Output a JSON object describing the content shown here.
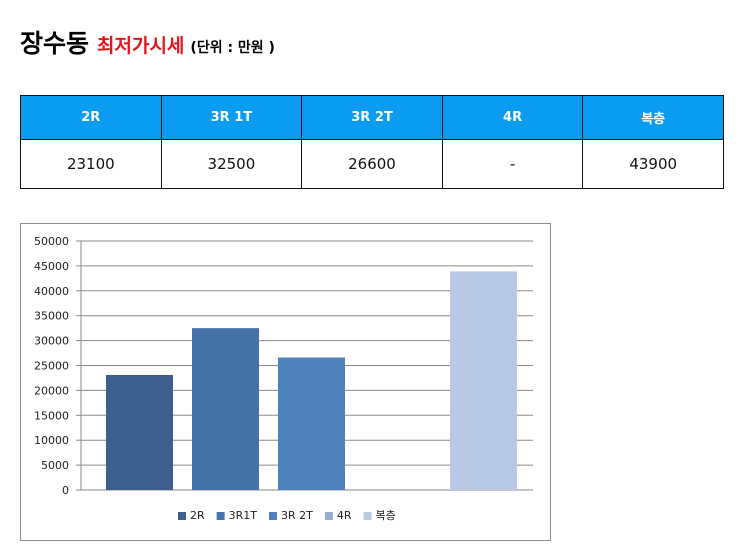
{
  "header": {
    "title": "장수동",
    "subtitle": "최저가시세",
    "unit": "(단위 : 만원 )"
  },
  "price_table": {
    "headers": [
      "2R",
      "3R 1T",
      "3R 2T",
      "4R",
      "복층"
    ],
    "values": [
      "23100",
      "32500",
      "26600",
      "-",
      "43900"
    ]
  },
  "colors": {
    "header_bg": "#0a9cf0",
    "title_accent": "#e8141b",
    "series": [
      "#3c5f8e",
      "#4672aa",
      "#4f81bd",
      "#95abd2",
      "#b9c9e3"
    ]
  },
  "chart_data": {
    "type": "bar",
    "series": [
      {
        "name": "2R",
        "values": [
          23100
        ]
      },
      {
        "name": "3R1T",
        "values": [
          32500
        ]
      },
      {
        "name": "3R 2T",
        "values": [
          26600
        ]
      },
      {
        "name": "4R",
        "values": [
          null
        ]
      },
      {
        "name": "복층",
        "values": [
          43900
        ]
      }
    ],
    "ylim": [
      0,
      50000
    ],
    "yticks": [
      0,
      5000,
      10000,
      15000,
      20000,
      25000,
      30000,
      35000,
      40000,
      45000,
      50000
    ],
    "ytick_labels": [
      "0",
      "5000",
      "10000",
      "15000",
      "20000",
      "25000",
      "30000",
      "35000",
      "40000",
      "45000",
      "50000"
    ],
    "grid": true,
    "legend_position": "bottom"
  }
}
